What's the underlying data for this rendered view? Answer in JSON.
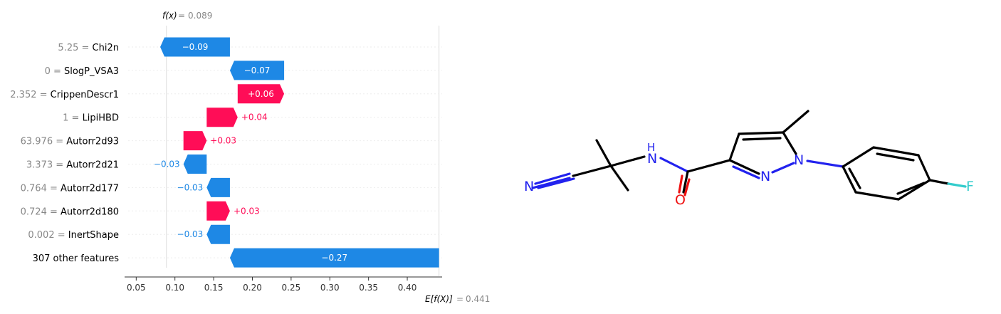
{
  "chart_data": {
    "type": "waterfall",
    "fx_label": "f(x)",
    "fx_value": "0.089",
    "ex_label": "E[f(X)]",
    "ex_value": "0.441",
    "base_value": 0.441,
    "final_value": 0.089,
    "xlim": [
      0.035,
      0.445
    ],
    "xticks": [
      0.05,
      0.1,
      0.15,
      0.2,
      0.25,
      0.3,
      0.35,
      0.4
    ],
    "xtick_labels": [
      "0.05",
      "0.10",
      "0.15",
      "0.20",
      "0.25",
      "0.30",
      "0.35",
      "0.40"
    ],
    "features": [
      {
        "value": "5.25",
        "name": "Chi2n",
        "shap": -0.09,
        "label": "−0.09"
      },
      {
        "value": "0",
        "name": "SlogP_VSA3",
        "shap": -0.07,
        "label": "−0.07"
      },
      {
        "value": "2.352",
        "name": "CrippenDescr1",
        "shap": 0.06,
        "label": "+0.06"
      },
      {
        "value": "1",
        "name": "LipiHBD",
        "shap": 0.04,
        "label": "+0.04"
      },
      {
        "value": "63.976",
        "name": "Autorr2d93",
        "shap": 0.03,
        "label": "+0.03"
      },
      {
        "value": "3.373",
        "name": "Autorr2d21",
        "shap": -0.03,
        "label": "−0.03"
      },
      {
        "value": "0.764",
        "name": "Autorr2d177",
        "shap": -0.03,
        "label": "−0.03"
      },
      {
        "value": "0.724",
        "name": "Autorr2d180",
        "shap": 0.03,
        "label": "+0.03"
      },
      {
        "value": "0.002",
        "name": "InertShape",
        "shap": -0.03,
        "label": "−0.03"
      },
      {
        "value": "",
        "name": "307 other features",
        "shap": -0.27,
        "label": "−0.27"
      }
    ],
    "colors": {
      "positive": "#ff0d57",
      "negative": "#1e88e5"
    }
  },
  "molecule": {
    "atom_labels": {
      "nitrile_n": "N",
      "amide_nh": "H",
      "amide_n": "N",
      "carbonyl_o": "O",
      "ring_n1": "N",
      "ring_n2": "N",
      "fluorine": "F"
    },
    "colors": {
      "N": "#2222ee",
      "O": "#ee1111",
      "F": "#33cccc",
      "bond": "#000000"
    }
  }
}
